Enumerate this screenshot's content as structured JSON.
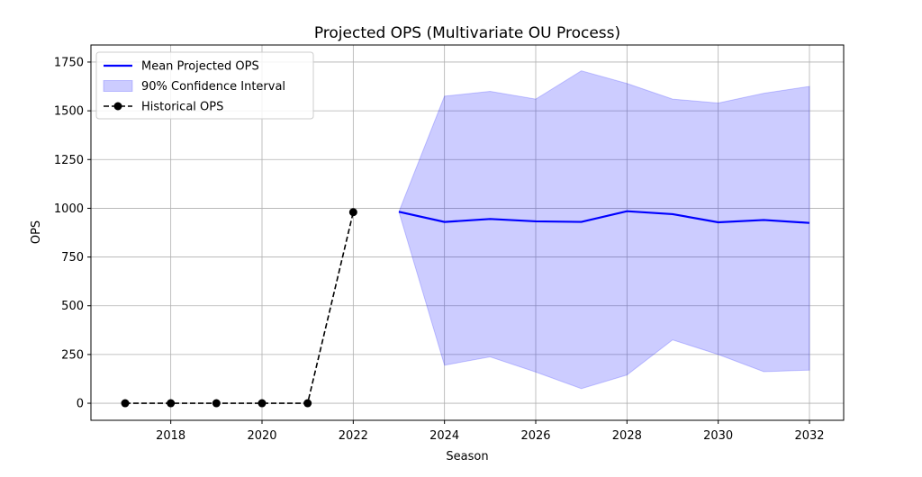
{
  "chart_data": {
    "type": "line",
    "title": "Projected OPS (Multivariate OU Process)",
    "xlabel": "Season",
    "ylabel": "OPS",
    "xlim": [
      2016.25,
      2032.75
    ],
    "ylim": [
      -87.5,
      1837.5
    ],
    "xticks": [
      2018,
      2020,
      2022,
      2024,
      2026,
      2028,
      2030,
      2032
    ],
    "yticks": [
      0,
      250,
      500,
      750,
      1000,
      1250,
      1500,
      1750
    ],
    "grid": true,
    "legend_position": "top-left",
    "series": [
      {
        "name": "Mean Projected OPS",
        "kind": "line",
        "color": "#0000ff",
        "x": [
          2023,
          2024,
          2025,
          2026,
          2027,
          2028,
          2029,
          2030,
          2031,
          2032
        ],
        "y": [
          982,
          930,
          945,
          933,
          930,
          985,
          970,
          928,
          940,
          925
        ]
      },
      {
        "name": "90% Confidence Interval",
        "kind": "band",
        "color": "#0000ff",
        "opacity": 0.2,
        "x": [
          2023,
          2024,
          2025,
          2026,
          2027,
          2028,
          2029,
          2030,
          2031,
          2032
        ],
        "lower": [
          982,
          195,
          238,
          160,
          75,
          145,
          325,
          250,
          162,
          170
        ],
        "upper": [
          982,
          1575,
          1600,
          1560,
          1705,
          1640,
          1560,
          1540,
          1590,
          1625
        ]
      },
      {
        "name": "Historical OPS",
        "kind": "dashed-line-markers",
        "color": "#000000",
        "x": [
          2017,
          2018,
          2019,
          2020,
          2021,
          2022
        ],
        "y": [
          0,
          0,
          0,
          0,
          0,
          980
        ]
      }
    ]
  }
}
